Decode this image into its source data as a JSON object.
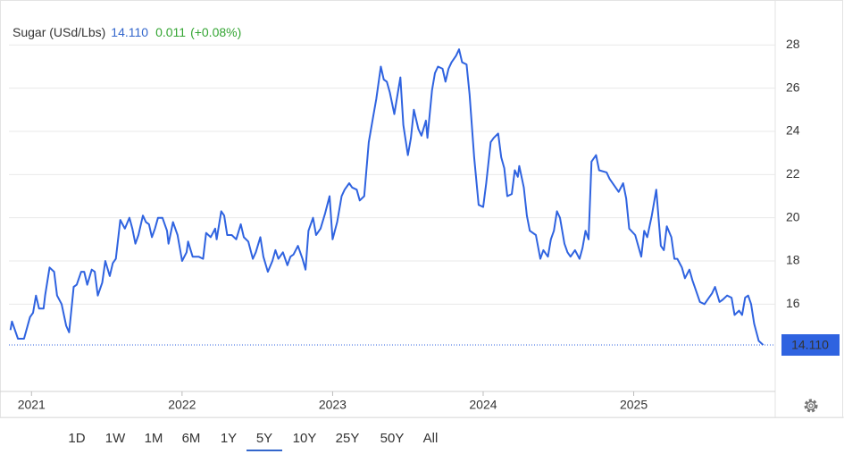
{
  "chart_data": {
    "type": "line",
    "title": "Sugar (USd/Lbs)",
    "price": "14.110",
    "change": "0.011",
    "change_pct": "(+0.08%)",
    "ranges": [
      "1D",
      "1W",
      "1M",
      "6M",
      "1Y",
      "5Y",
      "10Y",
      "25Y",
      "50Y",
      "All"
    ],
    "active_range": "5Y",
    "xlim": [
      2020.85,
      2025.94
    ],
    "xticks": [
      2021,
      2022,
      2023,
      2024,
      2025
    ],
    "ylim": [
      12,
      30
    ],
    "yticks": [
      16,
      18,
      20,
      22,
      24,
      26,
      28
    ],
    "grid": true,
    "color": "#2f63e0",
    "x": [
      2020.86,
      2020.87,
      2020.91,
      2020.95,
      2020.99,
      2021.01,
      2021.03,
      2021.05,
      2021.08,
      2021.09,
      2021.12,
      2021.15,
      2021.17,
      2021.2,
      2021.23,
      2021.25,
      2021.28,
      2021.3,
      2021.33,
      2021.35,
      2021.37,
      2021.4,
      2021.42,
      2021.44,
      2021.47,
      2021.49,
      2021.52,
      2021.54,
      2021.56,
      2021.59,
      2021.62,
      2021.65,
      2021.67,
      2021.69,
      2021.71,
      2021.74,
      2021.76,
      2021.78,
      2021.8,
      2021.82,
      2021.84,
      2021.87,
      2021.9,
      2021.91,
      2021.94,
      2021.97,
      2022.0,
      2022.03,
      2022.04,
      2022.07,
      2022.11,
      2022.14,
      2022.16,
      2022.19,
      2022.22,
      2022.23,
      2022.26,
      2022.28,
      2022.3,
      2022.33,
      2022.36,
      2022.39,
      2022.41,
      2022.44,
      2022.47,
      2022.49,
      2022.52,
      2022.54,
      2022.57,
      2022.6,
      2022.62,
      2022.64,
      2022.67,
      2022.7,
      2022.72,
      2022.74,
      2022.77,
      2022.8,
      2022.82,
      2022.84,
      2022.87,
      2022.89,
      2022.92,
      2022.95,
      2022.98,
      2023.0,
      2023.03,
      2023.06,
      2023.08,
      2023.11,
      2023.13,
      2023.16,
      2023.18,
      2023.21,
      2023.24,
      2023.27,
      2023.29,
      2023.32,
      2023.34,
      2023.36,
      2023.38,
      2023.41,
      2023.45,
      2023.47,
      2023.5,
      2023.52,
      2023.54,
      2023.57,
      2023.59,
      2023.62,
      2023.63,
      2023.66,
      2023.68,
      2023.7,
      2023.73,
      2023.75,
      2023.77,
      2023.79,
      2023.82,
      2023.84,
      2023.86,
      2023.89,
      2023.91,
      2023.94,
      2023.97,
      2024.0,
      2024.02,
      2024.05,
      2024.07,
      2024.1,
      2024.12,
      2024.14,
      2024.16,
      2024.19,
      2024.21,
      2024.23,
      2024.24,
      2024.27,
      2024.29,
      2024.31,
      2024.35,
      2024.38,
      2024.4,
      2024.43,
      2024.45,
      2024.47,
      2024.49,
      2024.51,
      2024.54,
      2024.56,
      2024.58,
      2024.61,
      2024.64,
      2024.66,
      2024.68,
      2024.7,
      2024.72,
      2024.75,
      2024.77,
      2024.82,
      2024.84,
      2024.88,
      2024.9,
      2024.93,
      2024.95,
      2024.97,
      2025.01,
      2025.05,
      2025.07,
      2025.09,
      2025.12,
      2025.15,
      2025.18,
      2025.2,
      2025.22,
      2025.25,
      2025.27,
      2025.29,
      2025.32,
      2025.34,
      2025.37,
      2025.39,
      2025.41,
      2025.44,
      2025.47,
      2025.5,
      2025.52,
      2025.54,
      2025.57,
      2025.59,
      2025.62,
      2025.65,
      2025.67,
      2025.7,
      2025.72,
      2025.74,
      2025.76,
      2025.78,
      2025.8,
      2025.83,
      2025.86
    ],
    "values": [
      14.8,
      15.2,
      14.4,
      14.4,
      15.4,
      15.6,
      16.4,
      15.8,
      15.8,
      16.4,
      17.7,
      17.5,
      16.4,
      16.0,
      15.0,
      14.7,
      16.8,
      16.9,
      17.5,
      17.5,
      16.9,
      17.6,
      17.5,
      16.4,
      17.0,
      18.0,
      17.3,
      17.9,
      18.1,
      19.9,
      19.5,
      20.0,
      19.5,
      18.8,
      19.2,
      20.1,
      19.8,
      19.7,
      19.1,
      19.5,
      20.0,
      20.0,
      19.4,
      18.8,
      19.8,
      19.2,
      18.0,
      18.4,
      18.9,
      18.2,
      18.2,
      18.1,
      19.3,
      19.1,
      19.5,
      19.0,
      20.3,
      20.1,
      19.2,
      19.2,
      19.0,
      19.7,
      19.1,
      18.9,
      18.1,
      18.4,
      19.1,
      18.2,
      17.5,
      18.0,
      18.5,
      18.1,
      18.4,
      17.8,
      18.2,
      18.3,
      18.7,
      18.1,
      17.6,
      19.4,
      20.0,
      19.2,
      19.5,
      20.2,
      21.0,
      19.0,
      19.8,
      21.0,
      21.3,
      21.6,
      21.4,
      21.3,
      20.8,
      21.0,
      23.5,
      24.7,
      25.5,
      27.0,
      26.4,
      26.3,
      25.8,
      24.8,
      26.5,
      24.3,
      22.9,
      23.7,
      25.0,
      24.1,
      23.8,
      24.5,
      23.7,
      25.9,
      26.7,
      27.0,
      26.9,
      26.3,
      26.9,
      27.2,
      27.5,
      27.8,
      27.2,
      27.1,
      25.7,
      22.8,
      20.6,
      20.5,
      21.6,
      23.5,
      23.7,
      23.9,
      22.8,
      22.3,
      21.0,
      21.1,
      22.2,
      21.9,
      22.4,
      21.4,
      20.1,
      19.4,
      19.2,
      18.1,
      18.5,
      18.2,
      19.0,
      19.4,
      20.3,
      20.0,
      18.8,
      18.4,
      18.2,
      18.5,
      18.1,
      18.6,
      19.4,
      19.0,
      22.6,
      22.9,
      22.2,
      22.1,
      21.8,
      21.4,
      21.2,
      21.6,
      20.9,
      19.5,
      19.2,
      18.2,
      19.4,
      19.1,
      20.1,
      21.3,
      18.7,
      18.5,
      19.6,
      19.1,
      18.1,
      18.1,
      17.7,
      17.2,
      17.6,
      17.1,
      16.7,
      16.1,
      16.0,
      16.3,
      16.5,
      16.8,
      16.1,
      16.2,
      16.4,
      16.3,
      15.5,
      15.7,
      15.5,
      16.3,
      16.4,
      16.0,
      15.1,
      14.3,
      14.11
    ]
  }
}
